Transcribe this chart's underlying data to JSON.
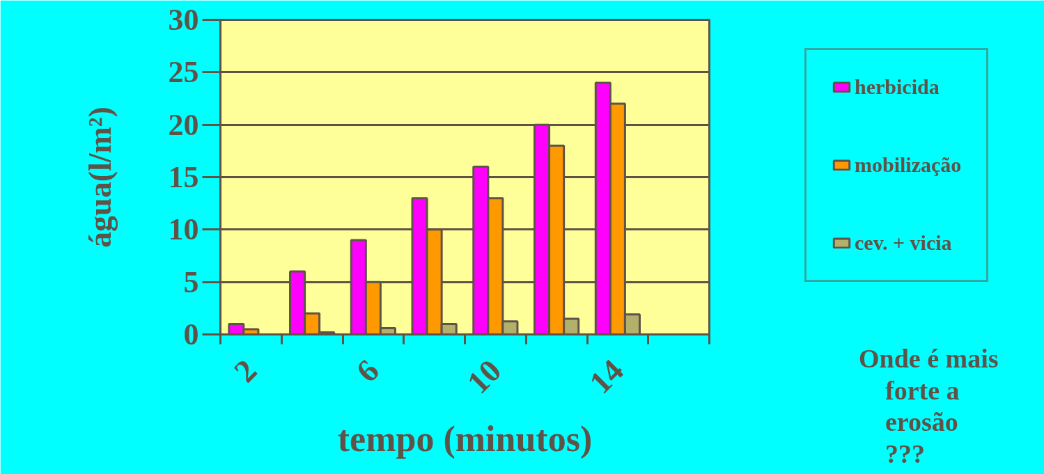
{
  "chart_data": {
    "type": "bar",
    "xlabel": "tempo (minutos)",
    "ylabel": "água(l/m²)",
    "categories": [
      "2",
      null,
      "6",
      null,
      "10",
      null,
      "14",
      null
    ],
    "series": [
      {
        "name": "herbicida",
        "color": "#ff00ff",
        "values": [
          1,
          6,
          9,
          13,
          16,
          20,
          24,
          null
        ]
      },
      {
        "name": "mobilização",
        "color": "#ff9900",
        "values": [
          0.5,
          2,
          5,
          10,
          13,
          18,
          22,
          null
        ]
      },
      {
        "name": "cev. + vicia",
        "color": "#b3b06c",
        "values": [
          null,
          0.2,
          0.6,
          1,
          1.25,
          1.5,
          1.9,
          null
        ]
      }
    ],
    "ylim": [
      0,
      30
    ],
    "yticks": [
      0,
      5,
      10,
      15,
      20,
      25,
      30
    ],
    "grid": "y",
    "legend": "right",
    "annotations": [
      "Onde é mais\n    forte a\n    erosão\n    ???"
    ]
  }
}
